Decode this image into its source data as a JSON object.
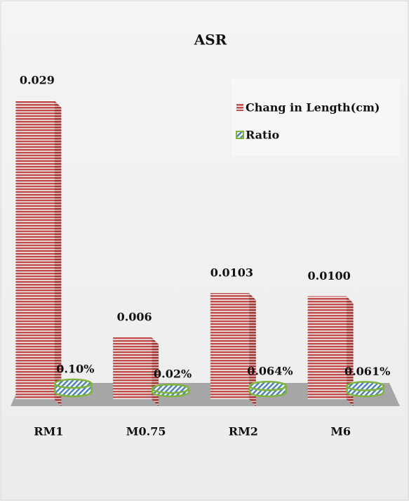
{
  "chart_data": {
    "type": "bar3d",
    "title": "ASR",
    "categories": [
      "RM1",
      "M0.75",
      "RM2",
      "M6"
    ],
    "series": [
      {
        "name": "Chang in Length(cm)",
        "color": "#c0504d",
        "values": [
          0.029,
          0.006,
          0.0103,
          0.01
        ],
        "value_labels": [
          "0.029",
          "0.006",
          "0.0103",
          "0.0100"
        ]
      },
      {
        "name": "Ratio",
        "color": "#4f81bd",
        "values": [
          0.1,
          0.02,
          0.064,
          0.061
        ],
        "value_labels": [
          "0.10%",
          "0.02%",
          "0.064%",
          "0.061%"
        ]
      }
    ]
  }
}
